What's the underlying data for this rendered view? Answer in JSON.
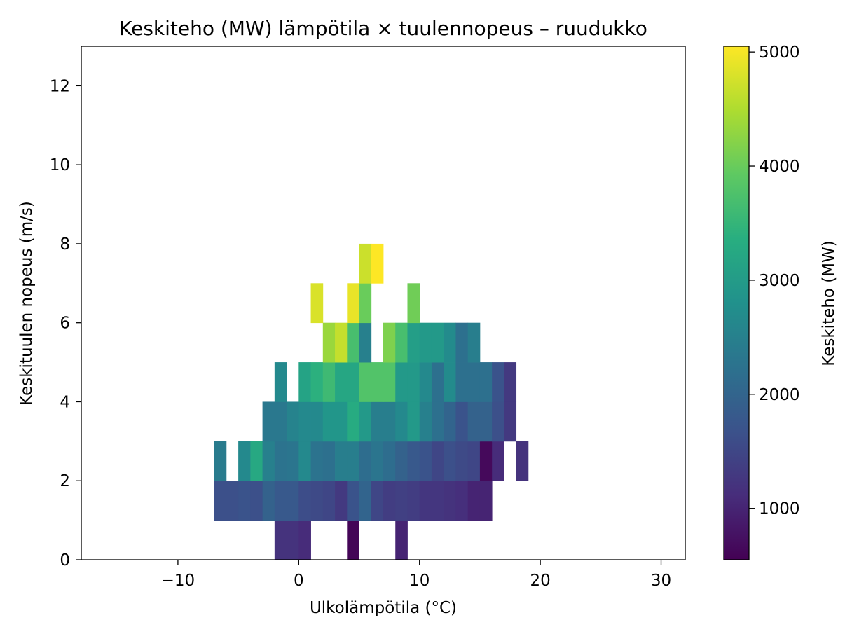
{
  "chart_data": {
    "type": "heatmap",
    "title": "Keskiteho (MW) lämpötila × tuulennopeus – ruudukko",
    "xlabel": "Ulkolämpötila (°C)",
    "ylabel": "Keskituulen nopeus (m/s)",
    "xlim": [
      -18,
      32
    ],
    "ylim": [
      0,
      13
    ],
    "x_ticks": [
      -10,
      0,
      10,
      20,
      30
    ],
    "x_tick_labels": [
      "−10",
      "0",
      "10",
      "20",
      "30"
    ],
    "y_ticks": [
      0,
      2,
      4,
      6,
      8,
      10,
      12
    ],
    "y_tick_labels": [
      "0",
      "2",
      "4",
      "6",
      "8",
      "10",
      "12"
    ],
    "bin_width_x": 1,
    "bin_height_y": 1,
    "grid": false,
    "colorbar": {
      "label": "Keskiteho (MW)",
      "colormap": "viridis",
      "min": 550,
      "max": 5050,
      "ticks": [
        1000,
        2000,
        3000,
        4000,
        5000
      ],
      "tick_labels": [
        "1000",
        "2000",
        "3000",
        "4000",
        "5000"
      ]
    },
    "cells": [
      {
        "x0": -2,
        "y0": 0,
        "value": 1200
      },
      {
        "x0": -1,
        "y0": 0,
        "value": 1200
      },
      {
        "x0": 0,
        "y0": 0,
        "value": 1100
      },
      {
        "x0": 4,
        "y0": 0,
        "value": 600
      },
      {
        "x0": 8,
        "y0": 0,
        "value": 1000
      },
      {
        "x0": -7,
        "y0": 1,
        "value": 1650
      },
      {
        "x0": -6,
        "y0": 1,
        "value": 1650
      },
      {
        "x0": -5,
        "y0": 1,
        "value": 1700
      },
      {
        "x0": -4,
        "y0": 1,
        "value": 1650
      },
      {
        "x0": -3,
        "y0": 1,
        "value": 1950
      },
      {
        "x0": -2,
        "y0": 1,
        "value": 1800
      },
      {
        "x0": -1,
        "y0": 1,
        "value": 1800
      },
      {
        "x0": 0,
        "y0": 1,
        "value": 1600
      },
      {
        "x0": 1,
        "y0": 1,
        "value": 1550
      },
      {
        "x0": 2,
        "y0": 1,
        "value": 1500
      },
      {
        "x0": 3,
        "y0": 1,
        "value": 1300
      },
      {
        "x0": 4,
        "y0": 1,
        "value": 1700
      },
      {
        "x0": 5,
        "y0": 1,
        "value": 2000
      },
      {
        "x0": 6,
        "y0": 1,
        "value": 1500
      },
      {
        "x0": 7,
        "y0": 1,
        "value": 1350
      },
      {
        "x0": 8,
        "y0": 1,
        "value": 1400
      },
      {
        "x0": 9,
        "y0": 1,
        "value": 1350
      },
      {
        "x0": 10,
        "y0": 1,
        "value": 1250
      },
      {
        "x0": 11,
        "y0": 1,
        "value": 1250
      },
      {
        "x0": 12,
        "y0": 1,
        "value": 1200
      },
      {
        "x0": 13,
        "y0": 1,
        "value": 1150
      },
      {
        "x0": 14,
        "y0": 1,
        "value": 1000
      },
      {
        "x0": 15,
        "y0": 1,
        "value": 1000
      },
      {
        "x0": -7,
        "y0": 2,
        "value": 2400
      },
      {
        "x0": -5,
        "y0": 2,
        "value": 2650
      },
      {
        "x0": -4,
        "y0": 2,
        "value": 3250
      },
      {
        "x0": -3,
        "y0": 2,
        "value": 2500
      },
      {
        "x0": -2,
        "y0": 2,
        "value": 2250
      },
      {
        "x0": -1,
        "y0": 2,
        "value": 2300
      },
      {
        "x0": 0,
        "y0": 2,
        "value": 2650
      },
      {
        "x0": 1,
        "y0": 2,
        "value": 2250
      },
      {
        "x0": 2,
        "y0": 2,
        "value": 2200
      },
      {
        "x0": 3,
        "y0": 2,
        "value": 2450
      },
      {
        "x0": 4,
        "y0": 2,
        "value": 2450
      },
      {
        "x0": 5,
        "y0": 2,
        "value": 2150
      },
      {
        "x0": 6,
        "y0": 2,
        "value": 2300
      },
      {
        "x0": 7,
        "y0": 2,
        "value": 2150
      },
      {
        "x0": 8,
        "y0": 2,
        "value": 1950
      },
      {
        "x0": 9,
        "y0": 2,
        "value": 1800
      },
      {
        "x0": 10,
        "y0": 2,
        "value": 1700
      },
      {
        "x0": 11,
        "y0": 2,
        "value": 1500
      },
      {
        "x0": 12,
        "y0": 2,
        "value": 1650
      },
      {
        "x0": 13,
        "y0": 2,
        "value": 1550
      },
      {
        "x0": 14,
        "y0": 2,
        "value": 1500
      },
      {
        "x0": 15,
        "y0": 2,
        "value": 650
      },
      {
        "x0": 16,
        "y0": 2,
        "value": 1100
      },
      {
        "x0": 18,
        "y0": 2,
        "value": 1200
      },
      {
        "x0": -3,
        "y0": 3,
        "value": 2350
      },
      {
        "x0": -2,
        "y0": 3,
        "value": 2350
      },
      {
        "x0": -1,
        "y0": 3,
        "value": 2550
      },
      {
        "x0": 0,
        "y0": 3,
        "value": 2650
      },
      {
        "x0": 1,
        "y0": 3,
        "value": 2650
      },
      {
        "x0": 2,
        "y0": 3,
        "value": 2900
      },
      {
        "x0": 3,
        "y0": 3,
        "value": 2900
      },
      {
        "x0": 4,
        "y0": 3,
        "value": 3300
      },
      {
        "x0": 5,
        "y0": 3,
        "value": 2950
      },
      {
        "x0": 6,
        "y0": 3,
        "value": 2450
      },
      {
        "x0": 7,
        "y0": 3,
        "value": 2450
      },
      {
        "x0": 8,
        "y0": 3,
        "value": 2650
      },
      {
        "x0": 9,
        "y0": 3,
        "value": 2950
      },
      {
        "x0": 10,
        "y0": 3,
        "value": 2500
      },
      {
        "x0": 11,
        "y0": 3,
        "value": 2200
      },
      {
        "x0": 12,
        "y0": 3,
        "value": 2000
      },
      {
        "x0": 13,
        "y0": 3,
        "value": 1700
      },
      {
        "x0": 14,
        "y0": 3,
        "value": 1950
      },
      {
        "x0": 15,
        "y0": 3,
        "value": 1950
      },
      {
        "x0": 16,
        "y0": 3,
        "value": 1650
      },
      {
        "x0": 17,
        "y0": 3,
        "value": 1300
      },
      {
        "x0": -2,
        "y0": 4,
        "value": 2650
      },
      {
        "x0": 0,
        "y0": 4,
        "value": 3150
      },
      {
        "x0": 1,
        "y0": 4,
        "value": 3400
      },
      {
        "x0": 2,
        "y0": 4,
        "value": 3600
      },
      {
        "x0": 3,
        "y0": 4,
        "value": 3200
      },
      {
        "x0": 4,
        "y0": 4,
        "value": 3200
      },
      {
        "x0": 5,
        "y0": 4,
        "value": 3800
      },
      {
        "x0": 6,
        "y0": 4,
        "value": 3800
      },
      {
        "x0": 7,
        "y0": 4,
        "value": 3800
      },
      {
        "x0": 8,
        "y0": 4,
        "value": 2950
      },
      {
        "x0": 9,
        "y0": 4,
        "value": 2950
      },
      {
        "x0": 10,
        "y0": 4,
        "value": 2650
      },
      {
        "x0": 11,
        "y0": 4,
        "value": 2200
      },
      {
        "x0": 12,
        "y0": 4,
        "value": 2700
      },
      {
        "x0": 13,
        "y0": 4,
        "value": 2200
      },
      {
        "x0": 14,
        "y0": 4,
        "value": 2200
      },
      {
        "x0": 15,
        "y0": 4,
        "value": 2200
      },
      {
        "x0": 16,
        "y0": 4,
        "value": 1700
      },
      {
        "x0": 17,
        "y0": 4,
        "value": 1300
      },
      {
        "x0": 2,
        "y0": 5,
        "value": 4350
      },
      {
        "x0": 3,
        "y0": 5,
        "value": 4650
      },
      {
        "x0": 4,
        "y0": 5,
        "value": 3700
      },
      {
        "x0": 5,
        "y0": 5,
        "value": 2500
      },
      {
        "x0": 7,
        "y0": 5,
        "value": 4150
      },
      {
        "x0": 8,
        "y0": 5,
        "value": 3700
      },
      {
        "x0": 9,
        "y0": 5,
        "value": 3050
      },
      {
        "x0": 10,
        "y0": 5,
        "value": 2950
      },
      {
        "x0": 11,
        "y0": 5,
        "value": 2950
      },
      {
        "x0": 12,
        "y0": 5,
        "value": 2700
      },
      {
        "x0": 13,
        "y0": 5,
        "value": 2200
      },
      {
        "x0": 14,
        "y0": 5,
        "value": 2450
      },
      {
        "x0": 1,
        "y0": 6,
        "value": 4800
      },
      {
        "x0": 4,
        "y0": 6,
        "value": 4900
      },
      {
        "x0": 5,
        "y0": 6,
        "value": 4000
      },
      {
        "x0": 9,
        "y0": 6,
        "value": 4050
      },
      {
        "x0": 5,
        "y0": 7,
        "value": 4700
      },
      {
        "x0": 6,
        "y0": 7,
        "value": 5050
      }
    ]
  }
}
